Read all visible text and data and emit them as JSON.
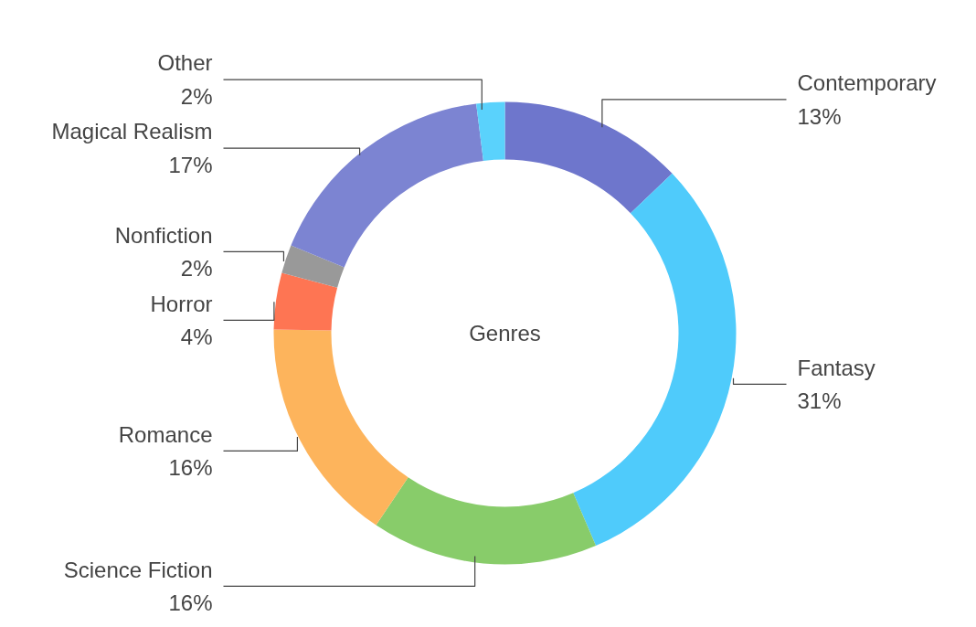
{
  "chart_data": {
    "type": "donut",
    "title": "Genres",
    "categories": [
      "Contemporary",
      "Fantasy",
      "Science Fiction",
      "Romance",
      "Horror",
      "Nonfiction",
      "Magical Realism",
      "Other"
    ],
    "values": [
      13,
      31,
      16,
      16,
      4,
      2,
      17,
      2
    ],
    "value_labels": [
      "13%",
      "31%",
      "16%",
      "16%",
      "4%",
      "2%",
      "17%",
      "2%"
    ],
    "colors": [
      "#6e76cc",
      "#4fcbfb",
      "#88cc6a",
      "#fdb45c",
      "#fe7553",
      "#999999",
      "#7c84d2",
      "#5ad2fc"
    ]
  }
}
